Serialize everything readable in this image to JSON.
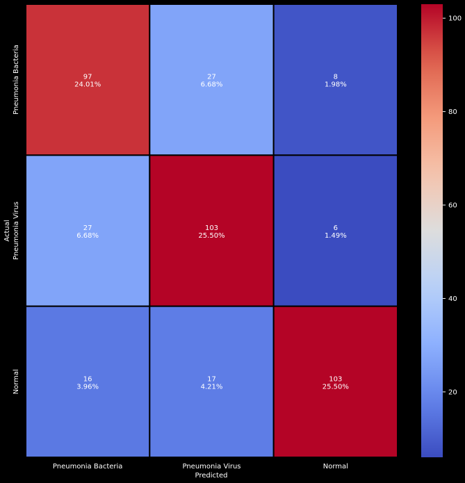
{
  "chart_data": {
    "type": "heatmap",
    "xlabel": "Predicted",
    "ylabel": "Actual",
    "x_categories": [
      "Pneumonia Bacteria",
      "Pneumonia Virus",
      "Normal"
    ],
    "y_categories": [
      "Pneumonia Bacteria",
      "Pneumonia Virus",
      "Normal"
    ],
    "values": [
      [
        97,
        27,
        8
      ],
      [
        27,
        103,
        6
      ],
      [
        16,
        17,
        103
      ]
    ],
    "percentages": [
      [
        "24.01%",
        "6.68%",
        "1.98%"
      ],
      [
        "6.68%",
        "25.50%",
        "1.49%"
      ],
      [
        "3.96%",
        "4.21%",
        "25.50%"
      ]
    ],
    "colormap": "coolwarm",
    "colorbar": {
      "min": 6,
      "max": 103,
      "ticks": [
        20,
        40,
        60,
        80,
        100
      ]
    },
    "cell_text_color": "#ffffff",
    "label_color": "#ffffff",
    "background": "#000000",
    "cell_border_color": "#000000"
  }
}
